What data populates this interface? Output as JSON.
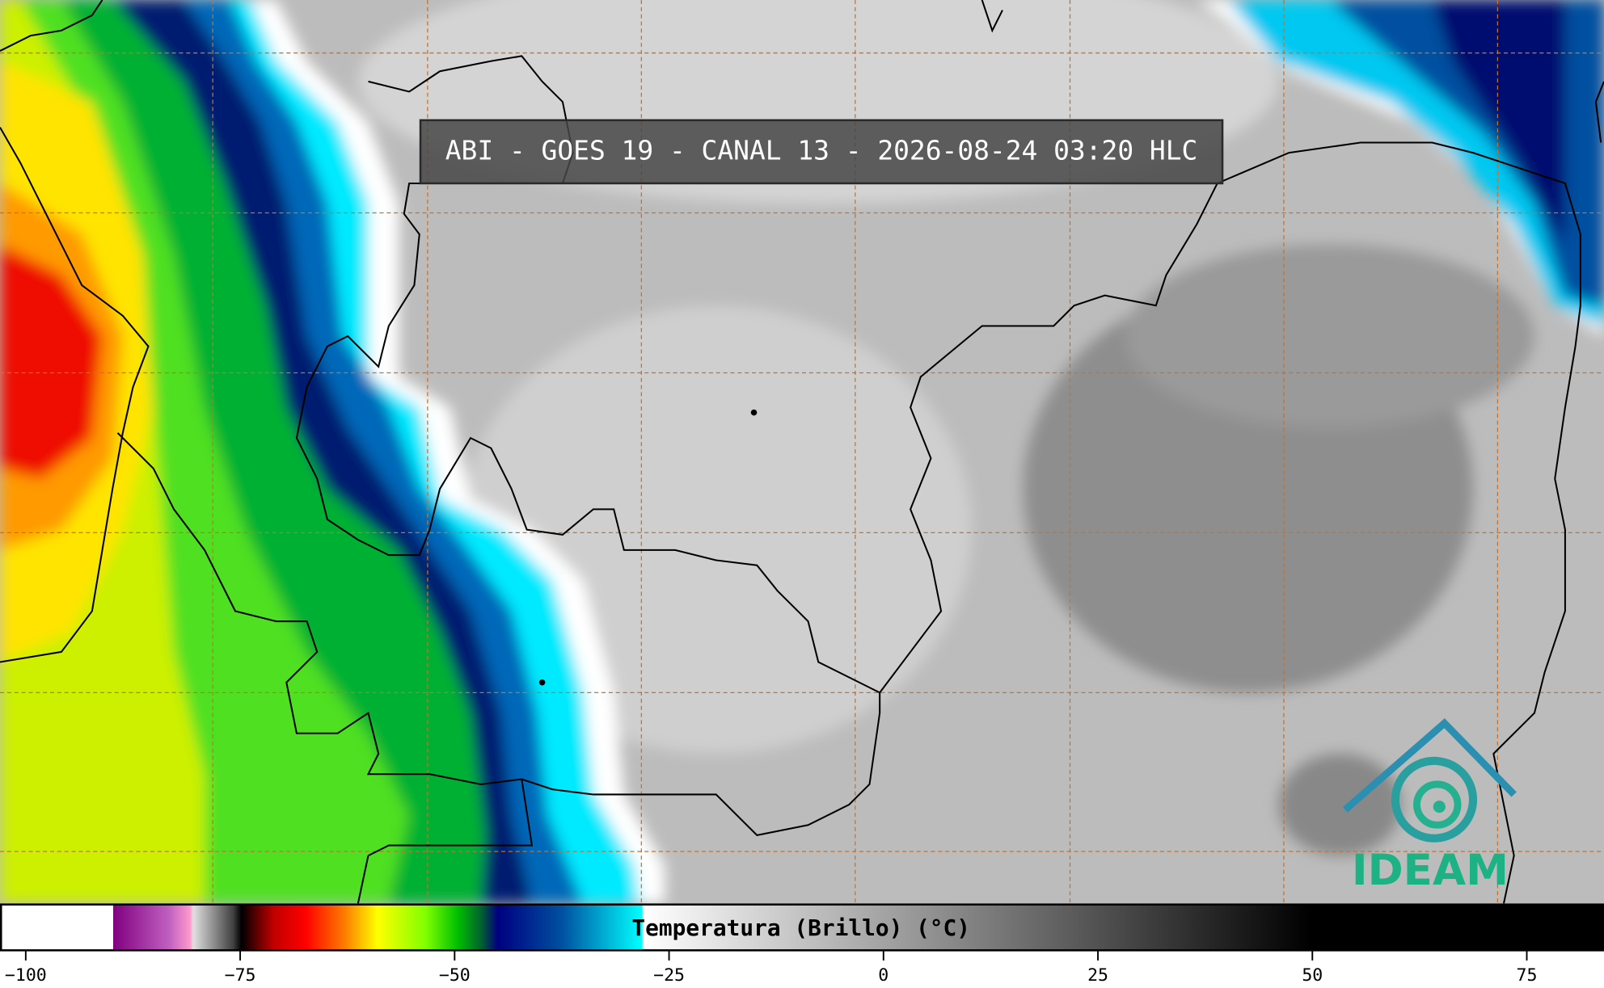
{
  "title": "ABI - GOES 19 - CANAL 13 - 2026-08-24 03:20 HLC",
  "colorbar": {
    "label": "Temperatura (Brillo) (°C)",
    "range": [
      -103,
      84
    ],
    "ticks": [
      {
        "value": -100,
        "label": "−100"
      },
      {
        "value": -75,
        "label": "−75"
      },
      {
        "value": -50,
        "label": "−50"
      },
      {
        "value": -25,
        "label": "−25"
      },
      0,
      25,
      50,
      75
    ]
  },
  "logo": {
    "text": "IDEAM"
  }
}
